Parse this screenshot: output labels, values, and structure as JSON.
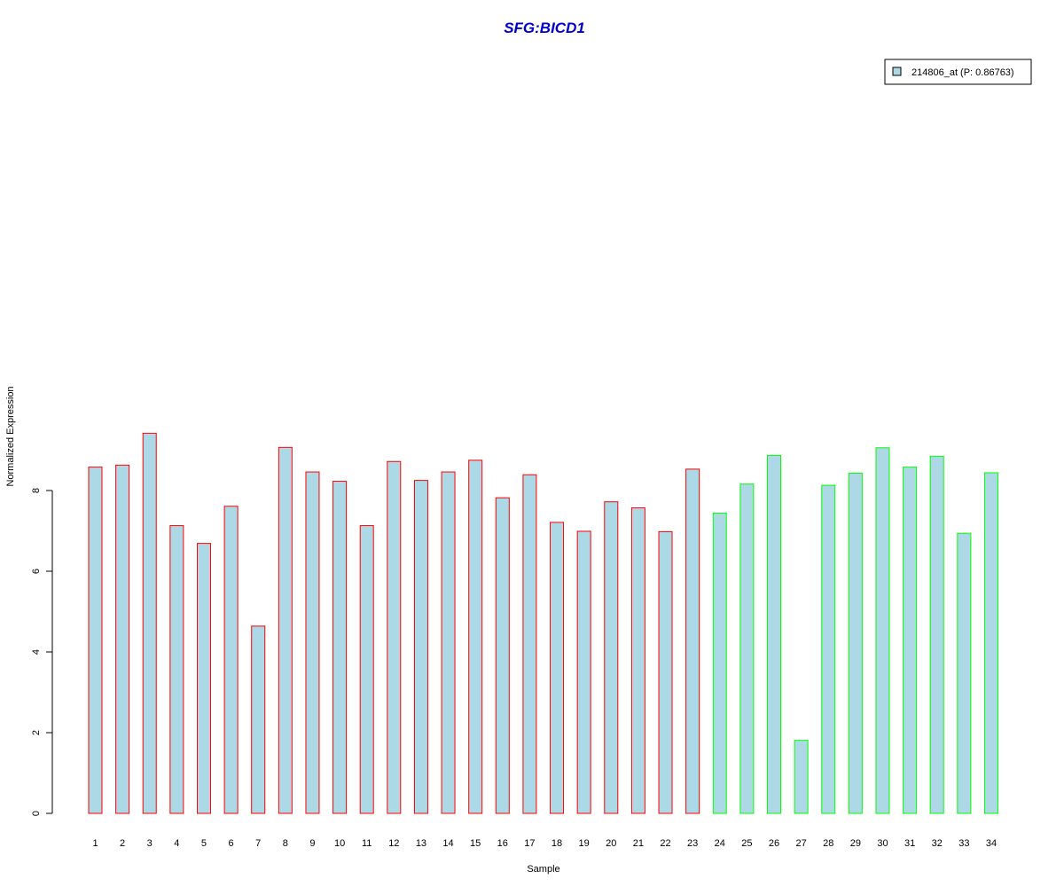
{
  "chart_data": {
    "type": "bar",
    "title": "SFG:BICD1",
    "xlabel": "Sample",
    "ylabel": "Normalized Expression",
    "ylim": [
      0,
      9.45
    ],
    "yticks": [
      0,
      2,
      4,
      6,
      8
    ],
    "categories": [
      "1",
      "2",
      "3",
      "4",
      "5",
      "6",
      "7",
      "8",
      "9",
      "10",
      "11",
      "12",
      "13",
      "14",
      "15",
      "16",
      "17",
      "18",
      "19",
      "20",
      "21",
      "22",
      "23",
      "24",
      "25",
      "26",
      "27",
      "28",
      "29",
      "30",
      "31",
      "32",
      "33",
      "34"
    ],
    "series": [
      {
        "name": "214806_at (P: 0.86763)",
        "values": [
          8.58,
          8.63,
          9.42,
          7.13,
          6.69,
          7.61,
          4.64,
          9.07,
          8.46,
          8.23,
          7.13,
          8.72,
          8.25,
          8.46,
          8.75,
          7.82,
          8.39,
          7.21,
          6.99,
          7.72,
          7.57,
          6.98,
          8.53,
          7.44,
          8.16,
          8.87,
          1.81,
          8.13,
          8.43,
          9.06,
          8.58,
          8.85,
          6.94,
          8.44
        ],
        "group": [
          "A",
          "A",
          "A",
          "A",
          "A",
          "A",
          "A",
          "A",
          "A",
          "A",
          "A",
          "A",
          "A",
          "A",
          "A",
          "A",
          "A",
          "A",
          "A",
          "A",
          "A",
          "A",
          "A",
          "B",
          "B",
          "B",
          "B",
          "B",
          "B",
          "B",
          "B",
          "B",
          "B",
          "B"
        ]
      }
    ],
    "colors": {
      "fill": "#add8e6",
      "border_group_A": "#ff0000",
      "border_group_B": "#00ff00",
      "title": "#0000cd",
      "axis": "#000000"
    },
    "legend": {
      "position": "top-right",
      "entries": [
        "214806_at (P: 0.86763)"
      ]
    },
    "grid": false
  }
}
